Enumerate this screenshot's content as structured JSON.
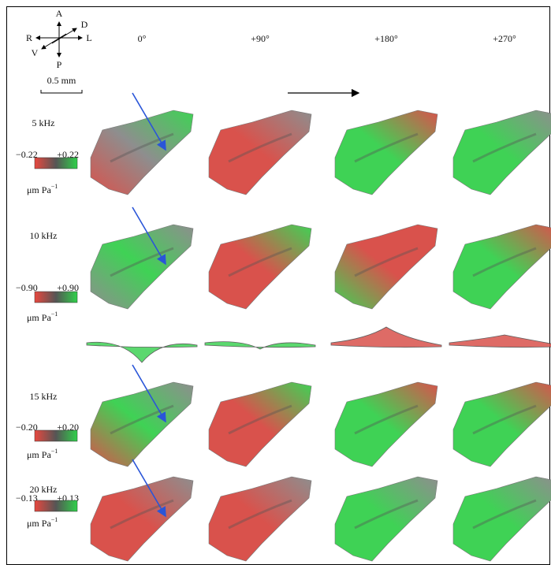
{
  "orientation": {
    "anterior": "A",
    "posterior": "P",
    "right": "R",
    "left": "L",
    "dorsal": "D",
    "ventral": "V"
  },
  "scale_bar": "0.5 mm",
  "columns": [
    "0°",
    "+90°",
    "+180°",
    "+270°"
  ],
  "rows": [
    {
      "frequency": "5 kHz",
      "colorbar": {
        "min": "−0.22",
        "max": "+0.22",
        "unit": "μm Pa",
        "unit_exponent": "−1"
      }
    },
    {
      "frequency": "10 kHz",
      "colorbar": {
        "min": "−0.90",
        "max": "+0.90",
        "unit": "μm Pa",
        "unit_exponent": "−1"
      }
    },
    {
      "frequency": "15 kHz",
      "colorbar": {
        "min": "−0.20",
        "max": "+0.20",
        "unit": "μm Pa",
        "unit_exponent": "−1"
      }
    },
    {
      "frequency": "20 kHz",
      "colorbar": {
        "min": "−0.13",
        "max": "+0.13",
        "unit": "μm Pa",
        "unit_exponent": "−1"
      }
    }
  ]
}
